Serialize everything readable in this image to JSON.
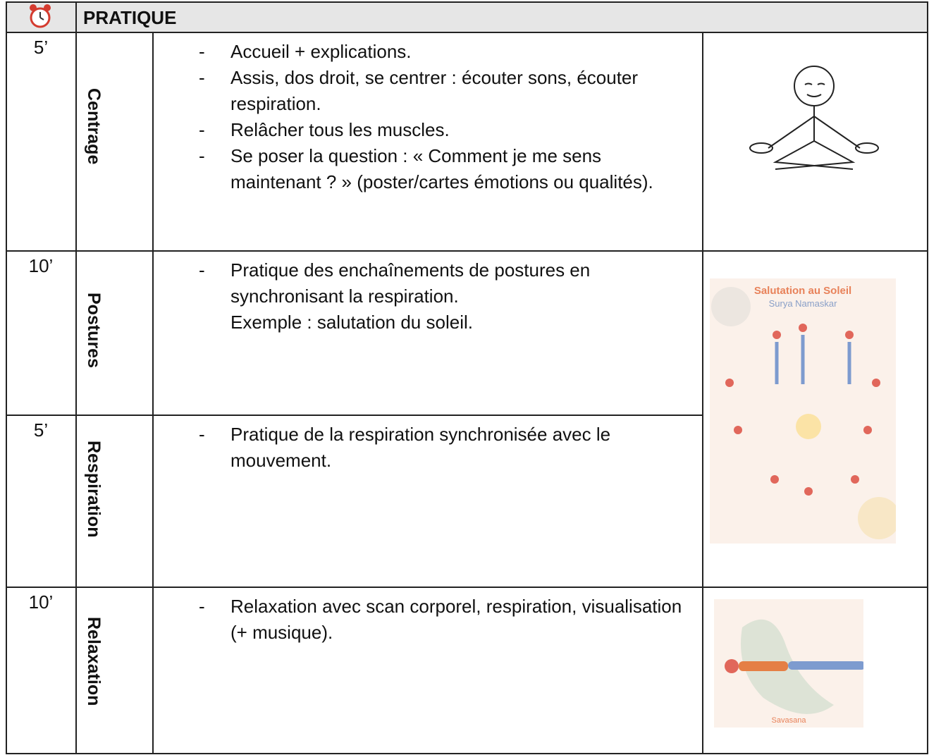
{
  "header": {
    "title": "PRATIQUE"
  },
  "rows": [
    {
      "time": "5’",
      "section": "Centrage",
      "items": [
        "Accueil + explications.",
        "Assis, dos droit, se centrer : écouter sons, écouter respiration.",
        "Relâcher tous les muscles.",
        "Se poser la question : « Comment je me sens maintenant ? » (poster/cartes émotions ou qualités)."
      ]
    },
    {
      "time": "10’",
      "section": "Postures",
      "items": [
        "Pratique des enchaînements de postures en synchronisant la respiration."
      ],
      "note": "Exemple : salutation du soleil."
    },
    {
      "time": "5’",
      "section": "Respiration",
      "items": [
        "Pratique de la respiration synchronisée avec le mouvement."
      ]
    },
    {
      "time": "10’",
      "section": "Relaxation",
      "items": [
        "Relaxation avec scan corporel, respiration, visualisation (+ musique)."
      ]
    }
  ],
  "images": {
    "poster_title": "Salutation au Soleil",
    "poster_subtitle": "Surya Namaskar",
    "savasana_caption": "Savasana"
  }
}
